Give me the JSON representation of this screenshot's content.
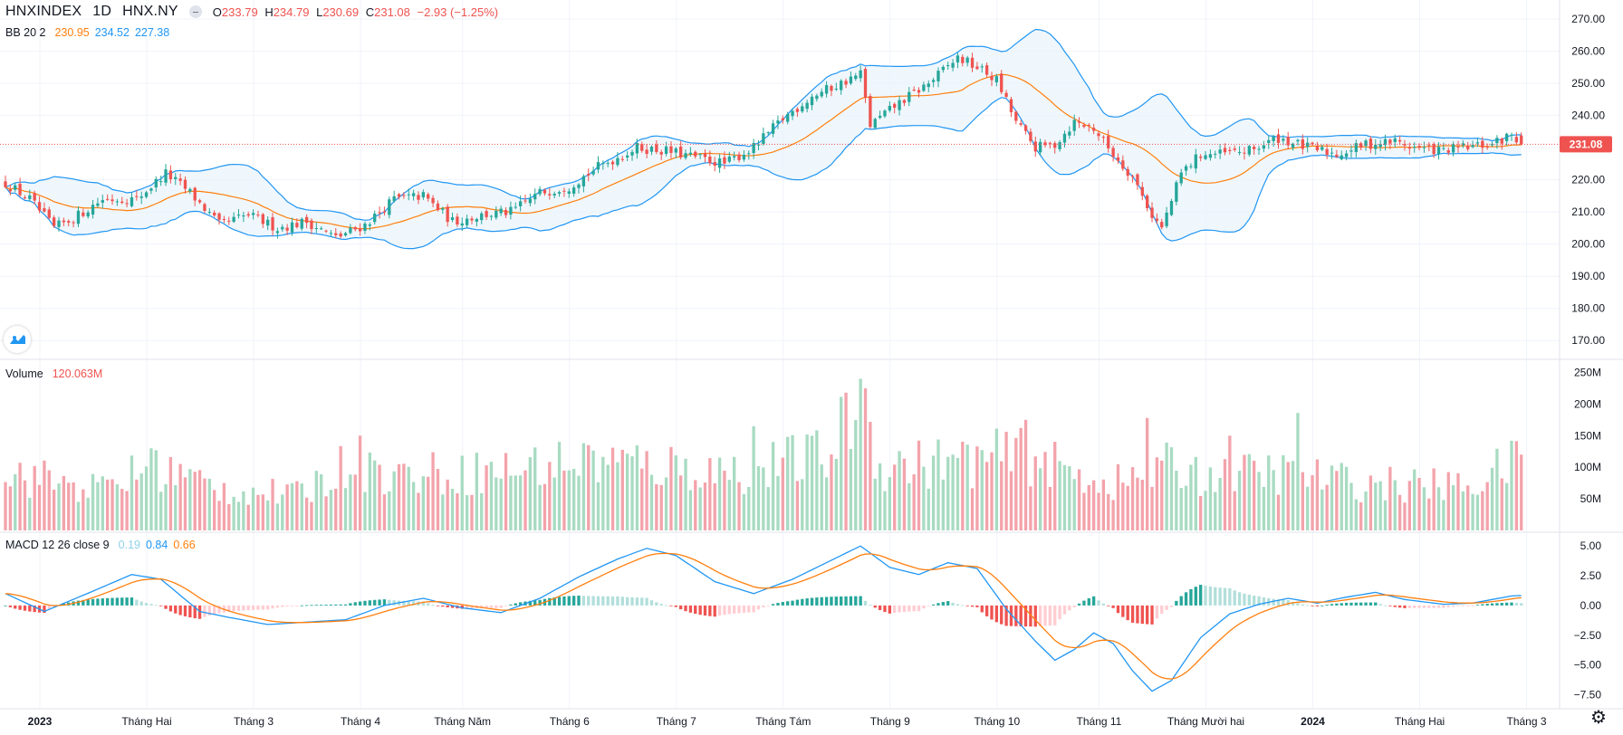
{
  "header": {
    "symbol": "HNXINDEX",
    "interval": "1D",
    "exchange": "HNX.NY",
    "ohlc": {
      "o_label": "O",
      "o": "233.79",
      "h_label": "H",
      "h": "234.79",
      "l_label": "L",
      "l": "230.69",
      "c_label": "C",
      "c": "231.08",
      "change": "−2.93 (−1.25%)"
    }
  },
  "bb_legend": {
    "name": "BB 20 2",
    "basis": "230.95",
    "upper": "234.52",
    "lower": "227.38"
  },
  "volume_legend": {
    "name": "Volume",
    "value": "120.063M"
  },
  "macd_legend": {
    "name": "MACD 12 26 close 9",
    "hist": "0.19",
    "macd": "0.84",
    "signal": "0.66"
  },
  "price_label": "231.08",
  "colors": {
    "up": "#26a69a",
    "down": "#ef5350",
    "vol_up": "#a8dbc2",
    "vol_down": "#f3a3ab",
    "bb_basis": "#ff7f0e",
    "bb_band": "#2196f3",
    "bb_fill": "#e8f3fb",
    "macd": "#2196f3",
    "signal": "#ff7f0e"
  },
  "icons": {
    "logo": "tradingview-logo-icon",
    "close": "close-circle-icon",
    "settings": "gear-icon"
  },
  "chart_data": {
    "type": "candlestick",
    "interval": "1D",
    "last_close": 231.08,
    "price_axis": {
      "ticks": [
        170,
        180,
        190,
        200,
        210,
        220,
        230,
        240,
        250,
        260,
        270
      ],
      "labels": [
        "170.00",
        "180.00",
        "190.00",
        "200.00",
        "210.00",
        "220.00",
        "230.00",
        "240.00",
        "250.00",
        "260.00",
        "270.00"
      ],
      "ylim": [
        165,
        272
      ]
    },
    "volume_axis": {
      "ticks": [
        50,
        100,
        150,
        200,
        250
      ],
      "labels": [
        "50M",
        "100M",
        "150M",
        "200M",
        "250M"
      ],
      "unit": "M"
    },
    "macd_axis": {
      "ticks": [
        5,
        2.5,
        0,
        -2.5,
        -5,
        -7.5
      ],
      "labels": [
        "5.00",
        "2.50",
        "0.00",
        "−2.50",
        "−5.00",
        "−7.50"
      ],
      "ylim": [
        -8.6,
        6
      ]
    },
    "time_axis": {
      "labels": [
        "2023",
        "Tháng Hai",
        "Tháng 3",
        "Tháng 4",
        "Tháng Năm",
        "Tháng 6",
        "Tháng 7",
        "Tháng Tám",
        "Tháng 9",
        "Tháng 10",
        "Tháng 11",
        "Tháng Mười hai",
        "2024",
        "Tháng Hai",
        "Tháng 3"
      ],
      "bold": [
        true,
        false,
        false,
        false,
        false,
        false,
        false,
        false,
        false,
        false,
        false,
        false,
        true,
        false,
        false
      ]
    },
    "close_anchors": [
      [
        0,
        219
      ],
      [
        5,
        214
      ],
      [
        10,
        205
      ],
      [
        14,
        208
      ],
      [
        20,
        214
      ],
      [
        27,
        214
      ],
      [
        33,
        222
      ],
      [
        38,
        216
      ],
      [
        44,
        206
      ],
      [
        50,
        209
      ],
      [
        56,
        205
      ],
      [
        62,
        207
      ],
      [
        68,
        202
      ],
      [
        74,
        206
      ],
      [
        80,
        214
      ],
      [
        86,
        215
      ],
      [
        92,
        207
      ],
      [
        98,
        209
      ],
      [
        104,
        210
      ],
      [
        110,
        216
      ],
      [
        116,
        218
      ],
      [
        122,
        224
      ],
      [
        130,
        230
      ],
      [
        136,
        229
      ],
      [
        142,
        227
      ],
      [
        148,
        225
      ],
      [
        154,
        230
      ],
      [
        160,
        239
      ],
      [
        166,
        246
      ],
      [
        172,
        250
      ],
      [
        176,
        253
      ],
      [
        178,
        237
      ],
      [
        184,
        244
      ],
      [
        190,
        250
      ],
      [
        196,
        258
      ],
      [
        200,
        255
      ],
      [
        204,
        251
      ],
      [
        208,
        238
      ],
      [
        212,
        230
      ],
      [
        216,
        231
      ],
      [
        220,
        238
      ],
      [
        224,
        236
      ],
      [
        228,
        228
      ],
      [
        232,
        221
      ],
      [
        236,
        209
      ],
      [
        238,
        205
      ],
      [
        242,
        222
      ],
      [
        246,
        228
      ],
      [
        250,
        228
      ],
      [
        256,
        229
      ],
      [
        262,
        233
      ],
      [
        268,
        230
      ],
      [
        274,
        228
      ],
      [
        280,
        231
      ],
      [
        286,
        232
      ],
      [
        290,
        230
      ],
      [
        296,
        229
      ],
      [
        300,
        230
      ],
      [
        306,
        231
      ],
      [
        310,
        234
      ],
      [
        312,
        231.08
      ]
    ],
    "macd_anchors": [
      [
        0,
        1
      ],
      [
        8,
        -0.5
      ],
      [
        18,
        1.2
      ],
      [
        26,
        2.6
      ],
      [
        32,
        2.2
      ],
      [
        40,
        -0.5
      ],
      [
        46,
        -1
      ],
      [
        54,
        -1.6
      ],
      [
        62,
        -1.4
      ],
      [
        70,
        -1.2
      ],
      [
        78,
        0
      ],
      [
        86,
        0.6
      ],
      [
        94,
        -0.2
      ],
      [
        102,
        -0.6
      ],
      [
        110,
        0.6
      ],
      [
        118,
        2.4
      ],
      [
        126,
        3.9
      ],
      [
        132,
        4.8
      ],
      [
        138,
        4.2
      ],
      [
        146,
        2
      ],
      [
        154,
        1
      ],
      [
        162,
        2.2
      ],
      [
        170,
        3.8
      ],
      [
        176,
        5
      ],
      [
        182,
        3.2
      ],
      [
        188,
        2.6
      ],
      [
        194,
        3.6
      ],
      [
        200,
        3.1
      ],
      [
        206,
        -0.3
      ],
      [
        212,
        -3
      ],
      [
        216,
        -4.6
      ],
      [
        220,
        -3.7
      ],
      [
        224,
        -2.3
      ],
      [
        228,
        -3.2
      ],
      [
        232,
        -5.5
      ],
      [
        236,
        -7.2
      ],
      [
        240,
        -6.3
      ],
      [
        246,
        -2.7
      ],
      [
        252,
        -0.7
      ],
      [
        258,
        0.1
      ],
      [
        264,
        0.6
      ],
      [
        270,
        0.2
      ],
      [
        276,
        0.7
      ],
      [
        282,
        1.1
      ],
      [
        288,
        0.5
      ],
      [
        296,
        0.1
      ],
      [
        302,
        0.2
      ],
      [
        310,
        0.8
      ],
      [
        312,
        0.84
      ]
    ],
    "volume_anchors": [
      [
        0,
        100
      ],
      [
        20,
        70
      ],
      [
        30,
        110
      ],
      [
        45,
        70
      ],
      [
        60,
        60
      ],
      [
        70,
        110
      ],
      [
        80,
        95
      ],
      [
        100,
        100
      ],
      [
        120,
        120
      ],
      [
        150,
        100
      ],
      [
        170,
        130
      ],
      [
        176,
        240
      ],
      [
        180,
        110
      ],
      [
        200,
        120
      ],
      [
        210,
        130
      ],
      [
        220,
        95
      ],
      [
        230,
        80
      ],
      [
        240,
        110
      ],
      [
        250,
        90
      ],
      [
        260,
        100
      ],
      [
        280,
        80
      ],
      [
        300,
        75
      ],
      [
        312,
        120
      ]
    ],
    "volume_spikes": [
      [
        30,
        130
      ],
      [
        73,
        150
      ],
      [
        120,
        135
      ],
      [
        154,
        165
      ],
      [
        176,
        240
      ],
      [
        210,
        175
      ],
      [
        235,
        178
      ],
      [
        252,
        150
      ],
      [
        266,
        186
      ],
      [
        312,
        120
      ]
    ]
  }
}
